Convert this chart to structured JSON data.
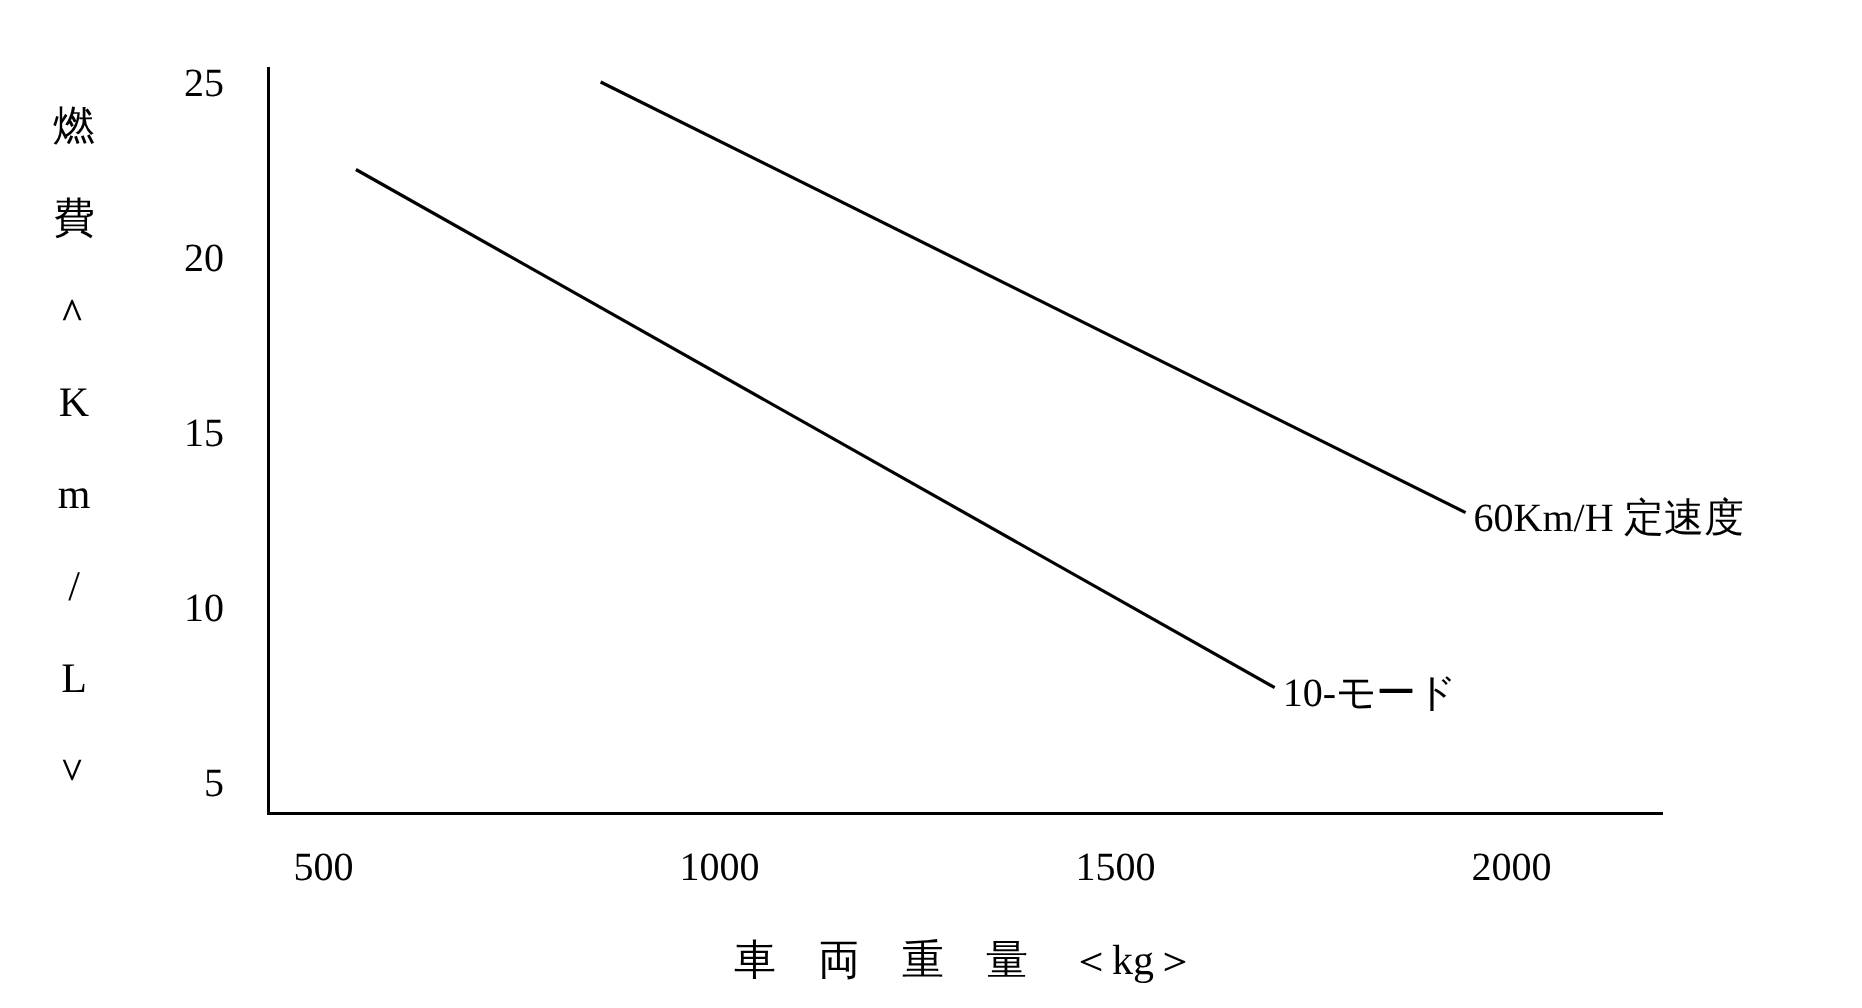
{
  "chart_data": {
    "type": "line",
    "xlabel": "車　両　重　量　＜kg＞",
    "ylabel": "燃費＜Km/L＞",
    "xlim": [
      430,
      2190
    ],
    "xticks": [
      500,
      1000,
      1500,
      2000
    ],
    "ylim": [
      4.2,
      25.5
    ],
    "yticks": [
      5,
      10,
      15,
      20,
      25
    ],
    "grid": false,
    "legend": false,
    "marker": "none",
    "line_style": "solid",
    "series": [
      {
        "name": "60Km/H 定速度",
        "color": "#000000",
        "x": [
          850,
          1942
        ],
        "values": [
          25.1,
          12.8
        ]
      },
      {
        "name": "10-モード",
        "color": "#000000",
        "x": [
          541,
          1701
        ],
        "values": [
          22.6,
          7.8
        ]
      }
    ]
  }
}
